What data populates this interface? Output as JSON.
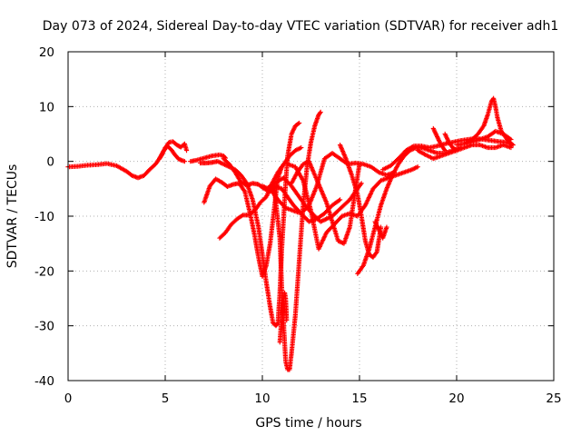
{
  "chart_data": {
    "type": "scatter",
    "title": "Day 073 of 2024, Sidereal Day-to-day VTEC variation (SDTVAR) for receiver adh1",
    "xlabel": "GPS time / hours",
    "ylabel": "SDTVAR / TECUs",
    "xlim": [
      0,
      25
    ],
    "ylim": [
      -40,
      20
    ],
    "x_ticks": [
      0,
      5,
      10,
      15,
      20,
      25
    ],
    "y_ticks": [
      -40,
      -30,
      -20,
      -10,
      0,
      10,
      20
    ],
    "grid": true,
    "marker": "plus",
    "color": "#ff0000",
    "series": [
      {
        "x": [
          0.0,
          0.5,
          1.0,
          1.5,
          2.0,
          2.5,
          3.0,
          3.3,
          3.6,
          3.9,
          4.2,
          4.5,
          4.8,
          5.0,
          5.2,
          5.4,
          5.6,
          5.8,
          6.0,
          6.1
        ],
        "values": [
          -1.0,
          -0.9,
          -0.7,
          -0.6,
          -0.4,
          -0.8,
          -1.8,
          -2.6,
          -3.0,
          -2.6,
          -1.5,
          -0.5,
          1.0,
          2.5,
          3.5,
          3.6,
          3.0,
          2.6,
          3.2,
          2.0
        ]
      },
      {
        "x": [
          4.7,
          4.9,
          5.1,
          5.3,
          5.5,
          5.7,
          6.0
        ],
        "values": [
          0.5,
          1.8,
          2.8,
          2.2,
          1.2,
          0.4,
          0.0
        ]
      },
      {
        "x": [
          6.3,
          6.6,
          7.0,
          7.4,
          7.8,
          8.0,
          8.1
        ],
        "values": [
          0.0,
          0.2,
          0.6,
          1.0,
          1.2,
          1.0,
          0.6
        ]
      },
      {
        "x": [
          7.0,
          7.3,
          7.6,
          7.9,
          8.2,
          8.5,
          8.8,
          9.1,
          9.4,
          9.6,
          9.8,
          10.0,
          10.2,
          10.4,
          10.6,
          10.8,
          11.0
        ],
        "values": [
          -7.5,
          -4.5,
          -3.2,
          -3.8,
          -4.6,
          -4.2,
          -4.0,
          -5.5,
          -10.0,
          -13.5,
          -17.5,
          -21.0,
          -19.0,
          -15.0,
          -9.0,
          -3.0,
          -1.0
        ]
      },
      {
        "x": [
          8.0,
          8.3,
          8.6,
          8.9,
          9.2,
          9.5,
          9.8,
          10.1,
          10.4,
          10.7,
          11.0,
          11.3,
          11.6,
          12.0,
          12.4,
          12.8,
          13.2,
          13.6,
          14.0
        ],
        "values": [
          0.5,
          -0.5,
          -2.0,
          -3.8,
          -4.4,
          -4.0,
          -4.2,
          -5.0,
          -5.5,
          -4.6,
          -5.0,
          -6.5,
          -8.0,
          -9.5,
          -11.0,
          -10.5,
          -9.5,
          -8.0,
          -7.0
        ]
      },
      {
        "x": [
          7.8,
          8.1,
          8.4,
          8.7,
          9.0,
          9.3,
          9.6,
          9.9,
          10.2,
          10.5,
          10.8,
          11.1,
          11.4,
          11.7,
          12.0
        ],
        "values": [
          -14.0,
          -13.0,
          -11.5,
          -10.5,
          -9.8,
          -9.8,
          -9.0,
          -7.5,
          -6.5,
          -4.0,
          -2.0,
          -0.5,
          1.0,
          2.0,
          2.5
        ]
      },
      {
        "x": [
          6.8,
          7.1,
          7.4,
          7.7,
          8.0,
          8.3,
          8.6,
          8.9,
          9.2,
          9.5,
          9.8,
          10.0,
          10.2,
          10.4,
          10.55,
          10.7,
          10.8,
          10.9,
          11.0,
          11.1,
          11.2,
          11.3,
          11.5,
          11.7,
          11.9
        ],
        "values": [
          -0.3,
          -0.3,
          -0.2,
          0.0,
          -0.5,
          -1.0,
          -1.5,
          -2.5,
          -4.0,
          -7.0,
          -12.0,
          -17.0,
          -22.0,
          -26.5,
          -29.5,
          -30.0,
          -29.5,
          -24.0,
          -16.0,
          -10.0,
          -4.0,
          1.0,
          5.0,
          6.5,
          7.0
        ]
      },
      {
        "x": [
          10.0,
          10.3,
          10.6,
          10.9,
          11.0,
          11.1,
          11.2,
          11.3,
          11.4,
          11.5,
          11.7,
          11.9,
          12.1,
          12.3,
          12.5,
          12.7,
          12.9,
          13.0
        ],
        "values": [
          -4.5,
          -5.0,
          -4.5,
          -14.0,
          -23.0,
          -30.0,
          -36.5,
          -38.0,
          -38.0,
          -35.0,
          -28.0,
          -18.0,
          -8.0,
          -1.0,
          3.5,
          6.5,
          8.5,
          9.0
        ]
      },
      {
        "x": [
          10.9,
          11.0,
          11.1,
          11.15,
          11.2,
          11.25
        ],
        "values": [
          -33.0,
          -28.0,
          -25.0,
          -24.0,
          -25.0,
          -29.0
        ]
      },
      {
        "x": [
          10.3,
          10.7,
          11.1,
          11.5,
          11.9,
          12.3,
          12.7,
          13.0,
          13.3,
          13.6,
          13.9,
          14.2,
          14.5,
          14.8,
          15.1
        ],
        "values": [
          -4.8,
          -3.8,
          -3.0,
          -4.5,
          -6.5,
          -8.5,
          -10.0,
          -11.0,
          -10.5,
          -10.0,
          -9.0,
          -8.0,
          -7.0,
          -5.5,
          -4.0
        ]
      },
      {
        "x": [
          10.4,
          10.8,
          11.2,
          11.6,
          12.0,
          12.4,
          12.8,
          13.2,
          13.6,
          14.0,
          14.4,
          14.8,
          15.2,
          15.6,
          16.0,
          16.4,
          16.8
        ],
        "values": [
          -5.0,
          -7.0,
          -8.5,
          -9.0,
          -9.5,
          -8.0,
          -4.5,
          0.5,
          1.5,
          0.5,
          -0.5,
          -0.3,
          -0.5,
          -1.0,
          -2.0,
          -2.5,
          -2.0
        ]
      },
      {
        "x": [
          11.5,
          11.8,
          12.1,
          12.4,
          12.7,
          13.0,
          13.3,
          13.6,
          13.9,
          14.2,
          14.5,
          14.8,
          15.0
        ],
        "values": [
          -4.0,
          -2.0,
          -0.5,
          0.0,
          -2.5,
          -5.0,
          -7.5,
          -11.0,
          -14.5,
          -15.0,
          -12.0,
          -5.0,
          -0.5
        ]
      },
      {
        "x": [
          11.3,
          11.7,
          12.1,
          12.5,
          12.9,
          13.3,
          13.7,
          14.1,
          14.5,
          14.9,
          15.3,
          15.7,
          16.1,
          16.5,
          16.9,
          17.3,
          17.7,
          18.0
        ],
        "values": [
          -0.5,
          -1.0,
          -3.5,
          -9.0,
          -16.0,
          -13.0,
          -11.5,
          -10.0,
          -9.5,
          -10.0,
          -8.0,
          -5.0,
          -3.5,
          -3.0,
          -2.5,
          -2.0,
          -1.5,
          -1.0
        ]
      },
      {
        "x": [
          14.0,
          14.3,
          14.6,
          14.9,
          15.1,
          15.3,
          15.5,
          15.7,
          15.9,
          16.1
        ],
        "values": [
          3.0,
          0.5,
          -2.5,
          -6.0,
          -10.0,
          -14.5,
          -17.0,
          -17.5,
          -16.5,
          -12.0
        ]
      },
      {
        "x": [
          14.9,
          15.2,
          15.5,
          15.8,
          16.1,
          16.4,
          16.7,
          17.0,
          17.3,
          17.6,
          17.9,
          18.2,
          18.6,
          19.0,
          19.4,
          19.8,
          20.2
        ],
        "values": [
          -20.5,
          -19.0,
          -16.0,
          -12.0,
          -8.0,
          -5.0,
          -2.5,
          -0.5,
          1.0,
          2.0,
          2.5,
          2.5,
          2.0,
          1.5,
          1.5,
          2.0,
          2.5
        ]
      },
      {
        "x": [
          15.8,
          16.0,
          16.2,
          16.4
        ],
        "values": [
          -11.0,
          -12.5,
          -14.0,
          -12.0
        ]
      },
      {
        "x": [
          16.2,
          16.6,
          17.0,
          17.4,
          17.8,
          18.2,
          18.6,
          19.0,
          19.4,
          19.8,
          20.2,
          20.6,
          21.0,
          21.4,
          21.8,
          22.2,
          22.6,
          22.9
        ],
        "values": [
          -1.5,
          -0.8,
          0.5,
          2.0,
          2.8,
          2.8,
          2.5,
          2.8,
          3.2,
          3.5,
          3.8,
          4.0,
          4.2,
          4.0,
          3.8,
          3.6,
          3.5,
          3.0
        ]
      },
      {
        "x": [
          18.0,
          18.4,
          18.8,
          19.2,
          19.6,
          20.0,
          20.4,
          20.8,
          21.2,
          21.6,
          22.0,
          22.4,
          22.8
        ],
        "values": [
          2.0,
          1.2,
          0.5,
          1.0,
          1.5,
          2.0,
          2.5,
          3.0,
          3.0,
          2.5,
          2.5,
          3.0,
          2.5
        ]
      },
      {
        "x": [
          18.8,
          19.0,
          19.2,
          19.4
        ],
        "values": [
          6.0,
          4.5,
          3.0,
          2.0
        ]
      },
      {
        "x": [
          19.4,
          19.6,
          19.8,
          20.0
        ],
        "values": [
          5.0,
          3.5,
          2.5,
          2.0
        ]
      },
      {
        "x": [
          20.5,
          20.8,
          21.1,
          21.4,
          21.6,
          21.8,
          21.9,
          22.0,
          22.1,
          22.3,
          22.6,
          22.9
        ],
        "values": [
          3.5,
          4.0,
          5.0,
          6.5,
          8.5,
          11.0,
          11.5,
          10.0,
          8.0,
          5.5,
          4.0,
          3.0
        ]
      },
      {
        "x": [
          20.0,
          20.4,
          20.8,
          21.2,
          21.6,
          22.0,
          22.4,
          22.8
        ],
        "values": [
          3.0,
          3.2,
          3.6,
          4.0,
          4.5,
          5.5,
          5.0,
          4.0
        ]
      }
    ]
  }
}
